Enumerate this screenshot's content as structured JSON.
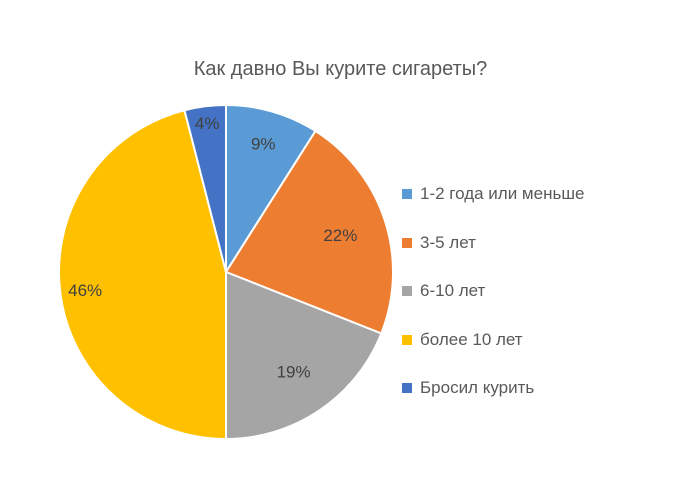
{
  "chart_data": {
    "type": "pie",
    "title": "Как давно Вы курите сигареты?",
    "categories": [
      "1-2 года или меньше",
      "3-5 лет",
      "6-10 лет",
      "более 10 лет",
      "Бросил курить"
    ],
    "values": [
      9,
      22,
      19,
      46,
      4
    ],
    "value_labels": [
      "9%",
      "22%",
      "19%",
      "46%",
      "4%"
    ],
    "colors": [
      "#5B9BD5",
      "#ED7D31",
      "#A5A5A5",
      "#FFC000",
      "#4472C4"
    ],
    "start_angle": "12 o'clock",
    "direction": "clockwise",
    "legend_position": "right"
  },
  "legend": [
    {
      "label": "1-2 года или меньше",
      "color": "#5B9BD5"
    },
    {
      "label": "3-5 лет",
      "color": "#ED7D31"
    },
    {
      "label": "6-10 лет",
      "color": "#A5A5A5"
    },
    {
      "label": "более 10 лет",
      "color": "#FFC000"
    },
    {
      "label": "Бросил курить",
      "color": "#4472C4"
    }
  ]
}
